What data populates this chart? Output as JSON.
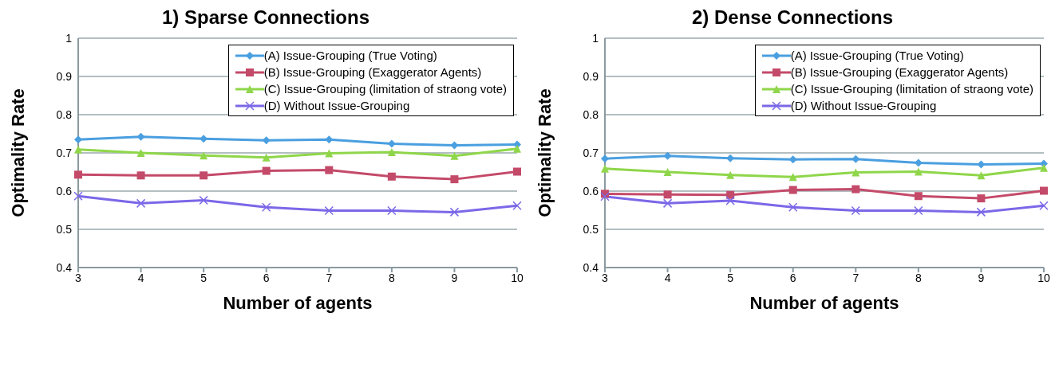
{
  "chart_data": [
    {
      "type": "line",
      "title": "1) Sparse Connections",
      "xlabel": "Number of agents",
      "ylabel": "Optimality Rate",
      "categories": [
        "3",
        "4",
        "5",
        "6",
        "7",
        "8",
        "9",
        "10"
      ],
      "ylim": [
        0.4,
        1
      ],
      "yticks": [
        0.4,
        0.5,
        0.6,
        0.7,
        0.8,
        0.9,
        1
      ],
      "grid": "y",
      "legend": "top right",
      "series": [
        {
          "name": "(A) Issue-Grouping (True Voting)",
          "color": "#4a9fe0",
          "marker": "diamond",
          "values": [
            0.735,
            0.742,
            0.737,
            0.733,
            0.735,
            0.724,
            0.72,
            0.722
          ]
        },
        {
          "name": "(B) Issue-Grouping (Exaggerator Agents)",
          "color": "#c44a6a",
          "marker": "square",
          "values": [
            0.643,
            0.641,
            0.641,
            0.653,
            0.655,
            0.638,
            0.631,
            0.651
          ]
        },
        {
          "name": "(C) Issue-Grouping (limitation of straong vote)",
          "color": "#8fd64a",
          "marker": "triangle",
          "values": [
            0.709,
            0.7,
            0.693,
            0.688,
            0.699,
            0.702,
            0.692,
            0.711
          ]
        },
        {
          "name": "(D) Without Issue-Grouping",
          "color": "#7b68e8",
          "marker": "cross",
          "values": [
            0.587,
            0.568,
            0.576,
            0.558,
            0.549,
            0.549,
            0.545,
            0.562
          ]
        }
      ]
    },
    {
      "type": "line",
      "title": "2) Dense Connections",
      "xlabel": "Number of agents",
      "ylabel": "Optimality Rate",
      "categories": [
        "3",
        "4",
        "5",
        "6",
        "7",
        "8",
        "9",
        "10"
      ],
      "ylim": [
        0.4,
        1
      ],
      "yticks": [
        0.4,
        0.5,
        0.6,
        0.7,
        0.8,
        0.9,
        1
      ],
      "grid": "y",
      "legend": "top right",
      "series": [
        {
          "name": "(A) Issue-Grouping (True Voting)",
          "color": "#4a9fe0",
          "marker": "diamond",
          "values": [
            0.685,
            0.692,
            0.686,
            0.683,
            0.684,
            0.674,
            0.67,
            0.672
          ]
        },
        {
          "name": "(B) Issue-Grouping (Exaggerator Agents)",
          "color": "#c44a6a",
          "marker": "square",
          "values": [
            0.593,
            0.591,
            0.59,
            0.603,
            0.605,
            0.587,
            0.581,
            0.601
          ]
        },
        {
          "name": "(C) Issue-Grouping (limitation of straong vote)",
          "color": "#8fd64a",
          "marker": "triangle",
          "values": [
            0.659,
            0.65,
            0.642,
            0.637,
            0.649,
            0.651,
            0.641,
            0.661
          ]
        },
        {
          "name": "(D) Without Issue-Grouping",
          "color": "#7b68e8",
          "marker": "cross",
          "values": [
            0.586,
            0.568,
            0.575,
            0.558,
            0.549,
            0.549,
            0.545,
            0.562
          ]
        }
      ]
    }
  ]
}
